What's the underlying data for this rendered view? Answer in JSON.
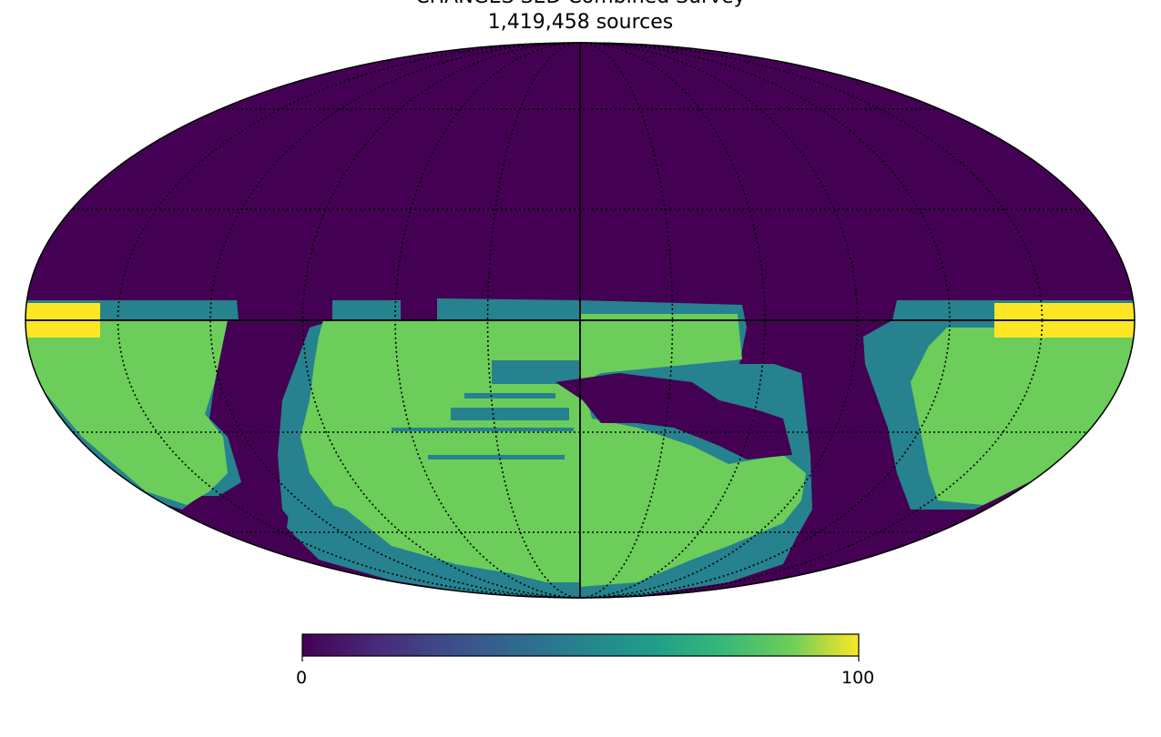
{
  "title_line1": "CHANGES SED Combined Survey",
  "title_line2": "1,419,458 sources",
  "colors": {
    "background": "#440154",
    "teal": "#26828e",
    "green": "#6ccd5a",
    "yellow": "#fde725"
  },
  "colorbar": {
    "min_label": "0",
    "max_label": "100",
    "colormap": "viridis"
  }
}
